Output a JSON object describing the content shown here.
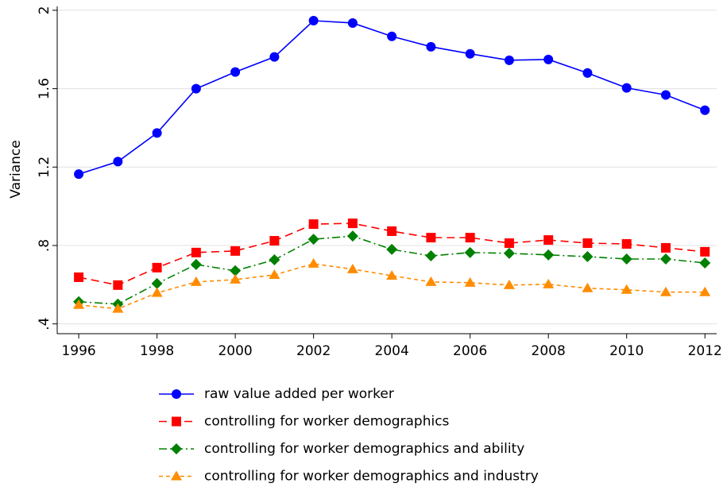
{
  "chart_data": {
    "type": "line",
    "y_label": "Variance",
    "x": [
      1996,
      1997,
      1998,
      1999,
      2000,
      2001,
      2002,
      2003,
      2004,
      2005,
      2006,
      2007,
      2008,
      2009,
      2010,
      2011,
      2012
    ],
    "xlim": [
      1995.45,
      2012.3
    ],
    "xticks": [
      1996,
      1998,
      2000,
      2002,
      2004,
      2006,
      2008,
      2010,
      2012
    ],
    "ylim": [
      0.35,
      2.02
    ],
    "yticks": [
      {
        "value": 0.4,
        "label": ".4"
      },
      {
        "value": 0.8,
        "label": ".8"
      },
      1.2,
      1.6,
      2
    ],
    "grid": true,
    "legend": "bottom",
    "series": [
      {
        "name": "raw value added per worker",
        "color": "#0000ff",
        "marker": "circle",
        "dash": "solid",
        "values": [
          1.164,
          1.228,
          1.374,
          1.6,
          1.685,
          1.762,
          1.947,
          1.935,
          1.867,
          1.814,
          1.778,
          1.745,
          1.749,
          1.68,
          1.604,
          1.568,
          1.49
        ]
      },
      {
        "name": "controlling for worker demographics",
        "color": "#ff0000",
        "marker": "square",
        "dash": "longdash",
        "values": [
          0.638,
          0.598,
          0.687,
          0.764,
          0.772,
          0.824,
          0.909,
          0.913,
          0.873,
          0.84,
          0.84,
          0.812,
          0.828,
          0.812,
          0.808,
          0.788,
          0.768
        ]
      },
      {
        "name": "controlling for worker demographics and ability",
        "color": "#008000",
        "marker": "diamond",
        "dash": "dashdot",
        "values": [
          0.513,
          0.501,
          0.606,
          0.703,
          0.671,
          0.727,
          0.832,
          0.848,
          0.78,
          0.747,
          0.764,
          0.76,
          0.752,
          0.743,
          0.731,
          0.731,
          0.711
        ]
      },
      {
        "name": "controlling for worker demographics and industry",
        "color": "#ff8c00",
        "marker": "triangle",
        "dash": "shortdash",
        "values": [
          0.497,
          0.477,
          0.558,
          0.614,
          0.626,
          0.65,
          0.707,
          0.679,
          0.646,
          0.614,
          0.61,
          0.598,
          0.602,
          0.582,
          0.574,
          0.562,
          0.562
        ]
      }
    ]
  }
}
